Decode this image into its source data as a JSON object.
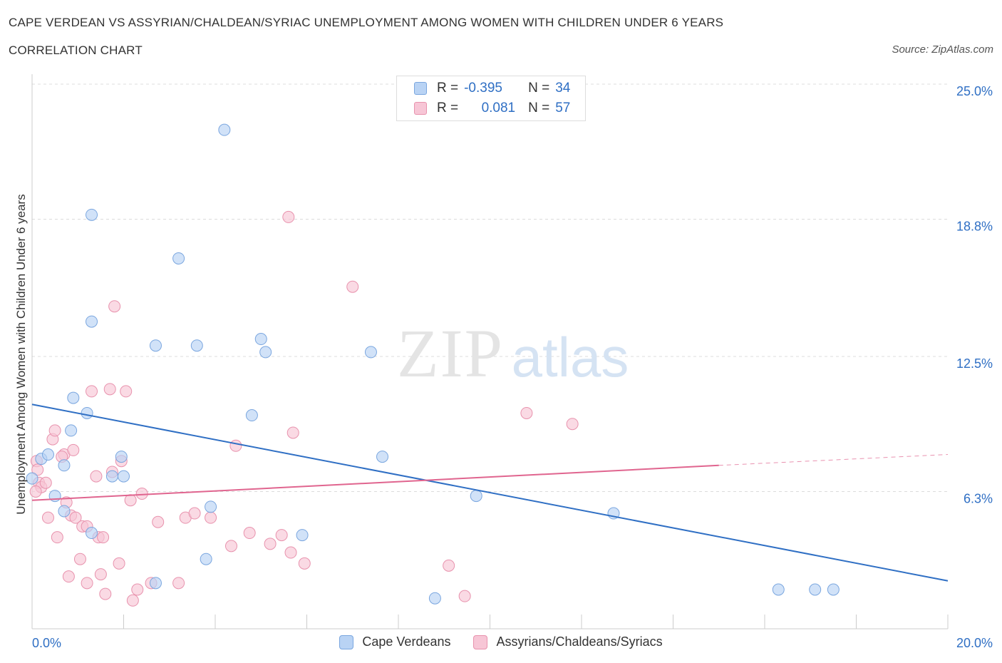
{
  "header": {
    "title": "CAPE VERDEAN VS ASSYRIAN/CHALDEAN/SYRIAC UNEMPLOYMENT AMONG WOMEN WITH CHILDREN UNDER 6 YEARS",
    "subtitle": "CORRELATION CHART",
    "source": "Source: ZipAtlas.com"
  },
  "watermark": {
    "zip": "ZIP",
    "atlas": "atlas"
  },
  "legend_top": [
    {
      "r_label": "R =",
      "r_value": "-0.395",
      "n_label": "N =",
      "n_value": "34"
    },
    {
      "r_label": "R =",
      "r_value": "0.081",
      "n_label": "N =",
      "n_value": "57"
    }
  ],
  "colors": {
    "blue_fill": "#b9d3f4",
    "blue_stroke": "#7aa6df",
    "blue_line": "#2f6fc4",
    "pink_fill": "#f7c6d6",
    "pink_stroke": "#e892ad",
    "pink_line": "#e0658f",
    "grid": "#dcdcdc",
    "tick_label": "#2f6fc4"
  },
  "chart_data": {
    "type": "scatter",
    "title": "CAPE VERDEAN VS ASSYRIAN/CHALDEAN/SYRIAC UNEMPLOYMENT AMONG WOMEN WITH CHILDREN UNDER 6 YEARS",
    "subtitle": "CORRELATION CHART",
    "xlabel": "",
    "ylabel": "Unemployment Among Women with Children Under 6 years",
    "xlim": [
      0,
      20
    ],
    "ylim": [
      0,
      25
    ],
    "x_tick_labels": [
      "0.0%",
      "20.0%"
    ],
    "y_ticks": [
      {
        "value": 6.3,
        "label": "6.3%"
      },
      {
        "value": 12.5,
        "label": "12.5%"
      },
      {
        "value": 18.8,
        "label": "18.8%"
      },
      {
        "value": 25.0,
        "label": "25.0%"
      }
    ],
    "grid": true,
    "legend_placement": "bottom",
    "series": [
      {
        "name": "Cape Verdeans",
        "color": "#7aa6df",
        "points": [
          [
            0.0,
            6.9
          ],
          [
            0.2,
            7.8
          ],
          [
            0.35,
            8.0
          ],
          [
            0.5,
            6.1
          ],
          [
            0.7,
            7.5
          ],
          [
            0.85,
            9.1
          ],
          [
            0.9,
            10.6
          ],
          [
            1.2,
            9.9
          ],
          [
            0.7,
            5.4
          ],
          [
            1.3,
            14.1
          ],
          [
            1.3,
            4.4
          ],
          [
            1.75,
            7.0
          ],
          [
            1.95,
            7.9
          ],
          [
            1.3,
            19.0
          ],
          [
            2.0,
            7.0
          ],
          [
            2.7,
            13.0
          ],
          [
            2.7,
            2.1
          ],
          [
            3.2,
            17.0
          ],
          [
            3.6,
            13.0
          ],
          [
            3.8,
            3.2
          ],
          [
            3.9,
            5.6
          ],
          [
            4.2,
            22.9
          ],
          [
            4.8,
            9.8
          ],
          [
            5.0,
            13.3
          ],
          [
            5.1,
            12.7
          ],
          [
            5.9,
            4.3
          ],
          [
            7.4,
            12.7
          ],
          [
            7.65,
            7.9
          ],
          [
            8.8,
            1.4
          ],
          [
            9.7,
            6.1
          ],
          [
            12.7,
            5.3
          ],
          [
            16.3,
            1.8
          ],
          [
            17.1,
            1.8
          ],
          [
            17.5,
            1.8
          ]
        ]
      },
      {
        "name": "Assyrians/Chaldeans/Syriacs",
        "color": "#e892ad",
        "points": [
          [
            0.1,
            7.7
          ],
          [
            0.15,
            6.7
          ],
          [
            0.2,
            6.5
          ],
          [
            0.3,
            6.7
          ],
          [
            0.35,
            5.1
          ],
          [
            0.45,
            8.7
          ],
          [
            0.5,
            9.1
          ],
          [
            0.55,
            4.2
          ],
          [
            0.7,
            8.0
          ],
          [
            0.65,
            7.9
          ],
          [
            0.75,
            5.8
          ],
          [
            0.8,
            2.4
          ],
          [
            0.85,
            5.2
          ],
          [
            0.9,
            8.2
          ],
          [
            0.95,
            5.1
          ],
          [
            1.05,
            3.2
          ],
          [
            1.1,
            4.7
          ],
          [
            1.2,
            4.7
          ],
          [
            1.2,
            2.1
          ],
          [
            1.3,
            10.9
          ],
          [
            1.4,
            7.0
          ],
          [
            1.45,
            4.2
          ],
          [
            1.5,
            2.5
          ],
          [
            1.55,
            4.2
          ],
          [
            1.6,
            1.6
          ],
          [
            1.7,
            11.0
          ],
          [
            1.75,
            7.2
          ],
          [
            1.8,
            14.8
          ],
          [
            1.9,
            3.0
          ],
          [
            1.95,
            7.7
          ],
          [
            2.05,
            10.9
          ],
          [
            2.15,
            5.9
          ],
          [
            2.2,
            1.3
          ],
          [
            2.3,
            1.8
          ],
          [
            2.4,
            6.2
          ],
          [
            2.6,
            2.1
          ],
          [
            2.75,
            4.9
          ],
          [
            3.2,
            2.1
          ],
          [
            3.35,
            5.1
          ],
          [
            3.55,
            5.3
          ],
          [
            3.9,
            5.1
          ],
          [
            4.35,
            3.8
          ],
          [
            4.45,
            8.4
          ],
          [
            4.75,
            4.4
          ],
          [
            5.2,
            3.9
          ],
          [
            5.45,
            4.3
          ],
          [
            5.6,
            18.9
          ],
          [
            5.65,
            3.5
          ],
          [
            5.7,
            9.0
          ],
          [
            5.95,
            3.0
          ],
          [
            7.0,
            15.7
          ],
          [
            9.1,
            2.9
          ],
          [
            9.45,
            1.5
          ],
          [
            10.8,
            9.9
          ],
          [
            11.8,
            9.4
          ],
          [
            0.08,
            6.3
          ],
          [
            0.12,
            7.3
          ]
        ]
      }
    ],
    "trend_lines": [
      {
        "series": "Cape Verdeans",
        "from": [
          0,
          10.3
        ],
        "to": [
          20,
          2.2
        ]
      },
      {
        "series": "Assyrians/Chaldeans/Syriacs",
        "from": [
          0,
          5.9
        ],
        "to": [
          15,
          7.5
        ],
        "dashed_to": [
          20,
          8.0
        ]
      }
    ]
  }
}
